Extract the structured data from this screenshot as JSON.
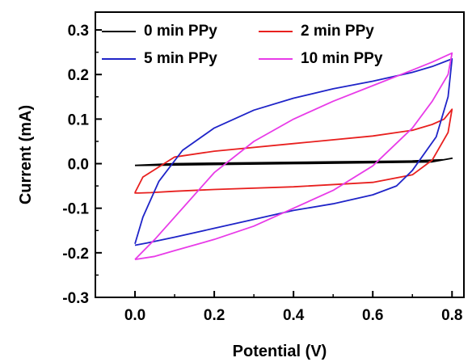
{
  "chart_data": {
    "type": "line",
    "title": "",
    "xlabel": "Potential (V)",
    "ylabel": "Current (mA)",
    "xlim": [
      -0.1,
      0.83
    ],
    "ylim": [
      -0.3,
      0.34
    ],
    "x_ticks": [
      0.0,
      0.2,
      0.4,
      0.6,
      0.8
    ],
    "x_tick_labels": [
      "0.0",
      "0.2",
      "0.4",
      "0.6",
      "0.8"
    ],
    "y_ticks": [
      -0.3,
      -0.2,
      -0.1,
      0.0,
      0.1,
      0.2,
      0.3
    ],
    "y_tick_labels": [
      "-0.3",
      "-0.2",
      "-0.1",
      "0.0",
      "0.1",
      "0.2",
      "0.3"
    ],
    "grid": false,
    "legend_position": "top",
    "series": [
      {
        "name": "0 min PPy",
        "color": "#000000",
        "x": [
          0.0,
          0.1,
          0.2,
          0.4,
          0.6,
          0.75,
          0.8,
          0.78,
          0.7,
          0.5,
          0.3,
          0.1,
          0.0
        ],
        "y": [
          -0.004,
          -0.003,
          -0.002,
          0.0,
          0.002,
          0.004,
          0.012,
          0.009,
          0.006,
          0.004,
          0.002,
          0.0,
          -0.004
        ]
      },
      {
        "name": "2 min PPy",
        "color": "#e8201f",
        "x": [
          0.0,
          0.02,
          0.1,
          0.2,
          0.4,
          0.6,
          0.7,
          0.75,
          0.78,
          0.8,
          0.79,
          0.75,
          0.7,
          0.6,
          0.4,
          0.2,
          0.1,
          0.04,
          0.01,
          0.0,
          0.0
        ],
        "y": [
          -0.065,
          -0.03,
          0.015,
          0.028,
          0.045,
          0.062,
          0.075,
          0.088,
          0.1,
          0.122,
          0.07,
          0.008,
          -0.025,
          -0.042,
          -0.052,
          -0.058,
          -0.062,
          -0.065,
          -0.066,
          -0.066,
          -0.065
        ]
      },
      {
        "name": "5 min PPy",
        "color": "#1f24c8",
        "x": [
          0.0,
          0.02,
          0.06,
          0.12,
          0.2,
          0.3,
          0.4,
          0.5,
          0.6,
          0.7,
          0.75,
          0.8,
          0.79,
          0.76,
          0.7,
          0.66,
          0.6,
          0.5,
          0.4,
          0.3,
          0.2,
          0.1,
          0.03,
          0.0
        ],
        "y": [
          -0.18,
          -0.12,
          -0.04,
          0.03,
          0.08,
          0.12,
          0.147,
          0.168,
          0.185,
          0.205,
          0.218,
          0.235,
          0.15,
          0.06,
          -0.015,
          -0.05,
          -0.07,
          -0.09,
          -0.105,
          -0.125,
          -0.145,
          -0.165,
          -0.178,
          -0.183
        ]
      },
      {
        "name": "10 min PPy",
        "color": "#e83be8",
        "x": [
          0.0,
          0.05,
          0.1,
          0.2,
          0.3,
          0.4,
          0.5,
          0.6,
          0.7,
          0.75,
          0.8,
          0.79,
          0.75,
          0.7,
          0.6,
          0.5,
          0.4,
          0.3,
          0.2,
          0.1,
          0.05,
          0.0
        ],
        "y": [
          -0.215,
          -0.17,
          -0.12,
          -0.02,
          0.05,
          0.1,
          0.14,
          0.175,
          0.21,
          0.228,
          0.248,
          0.2,
          0.14,
          0.08,
          -0.005,
          -0.06,
          -0.1,
          -0.14,
          -0.17,
          -0.195,
          -0.208,
          -0.215
        ]
      }
    ]
  }
}
